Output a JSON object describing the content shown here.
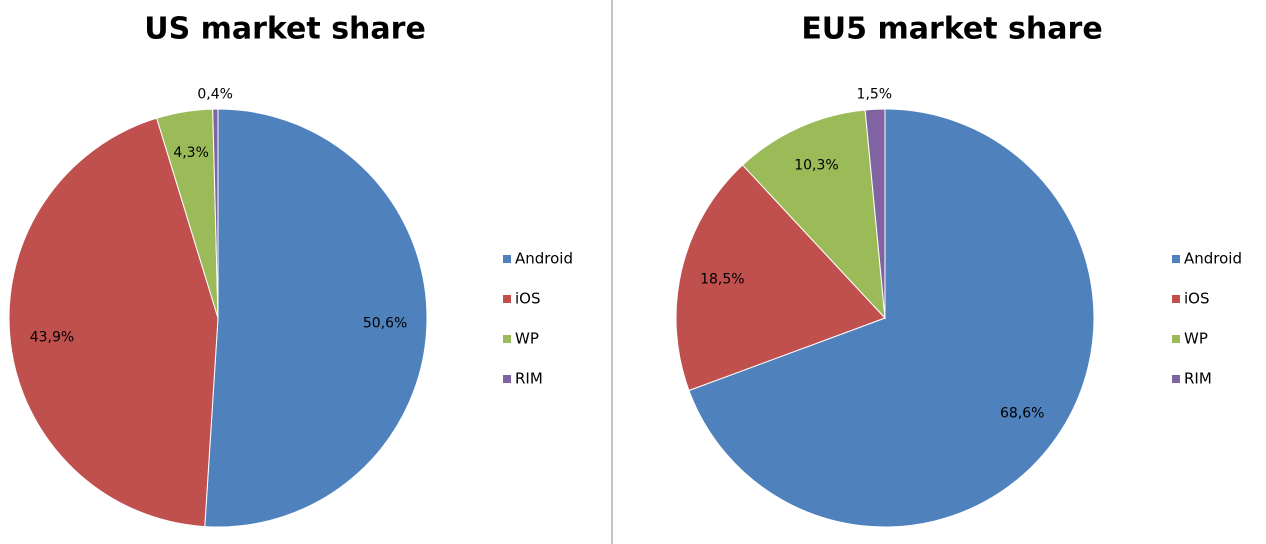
{
  "chart_data": [
    {
      "type": "pie",
      "title": "US market share",
      "categories": [
        "Android",
        "iOS",
        "WP",
        "RIM"
      ],
      "values": [
        50.6,
        43.9,
        4.3,
        0.4
      ],
      "value_labels": [
        "50,6%",
        "43,9%",
        "4,3%",
        "0,4%"
      ],
      "colors": [
        "#4f81bd",
        "#c0504d",
        "#9bbb59",
        "#8064a2"
      ],
      "legend": "right"
    },
    {
      "type": "pie",
      "title": "EU5 market share",
      "categories": [
        "Android",
        "iOS",
        "WP",
        "RIM"
      ],
      "values": [
        68.6,
        18.5,
        10.3,
        1.5
      ],
      "value_labels": [
        "68,6%",
        "18,5%",
        "10,3%",
        "1,5%"
      ],
      "colors": [
        "#4f81bd",
        "#c0504d",
        "#9bbb59",
        "#8064a2"
      ],
      "legend": "right"
    }
  ]
}
